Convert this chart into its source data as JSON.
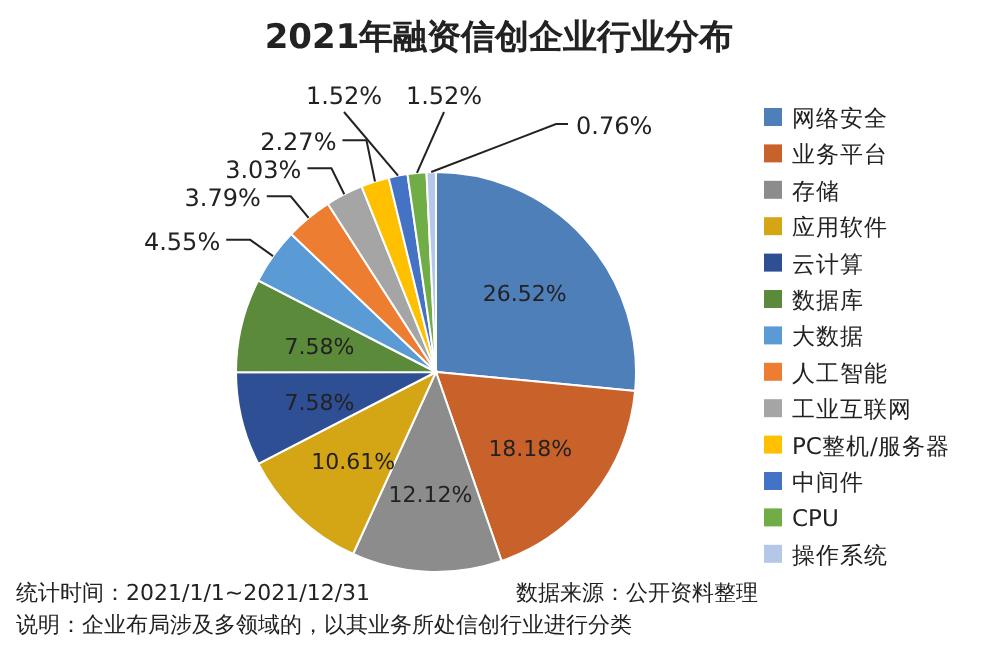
{
  "chart_data": {
    "type": "pie",
    "title": "2021年融资信创企业行业分布",
    "categories": [
      "网络安全",
      "业务平台",
      "存储",
      "应用软件",
      "云计算",
      "数据库",
      "大数据",
      "人工智能",
      "工业互联网",
      "PC整机/服务器",
      "中间件",
      "CPU",
      "操作系统"
    ],
    "values": [
      26.52,
      18.18,
      12.12,
      10.61,
      7.58,
      7.58,
      4.55,
      3.79,
      3.03,
      2.27,
      1.52,
      1.52,
      0.76
    ],
    "value_labels": [
      "26.52%",
      "18.18%",
      "12.12%",
      "10.61%",
      "7.58%",
      "7.58%",
      "4.55%",
      "3.79%",
      "3.03%",
      "2.27%",
      "1.52%",
      "1.52%",
      "0.76%"
    ],
    "colors": [
      "#4e7fb8",
      "#c8622a",
      "#8c8c8c",
      "#d4a514",
      "#2f4f94",
      "#5a8a3a",
      "#5b9bd5",
      "#ed7d31",
      "#a5a5a5",
      "#ffc000",
      "#4472c4",
      "#70ad47",
      "#b4c7e7"
    ],
    "legend": "right",
    "annotations": [
      "统计时间：2021/1/1~2021/12/31",
      "数据来源：公开资料整理",
      "说明：企业布局涉及多领域的，以其业务所处信创行业进行分类"
    ]
  }
}
